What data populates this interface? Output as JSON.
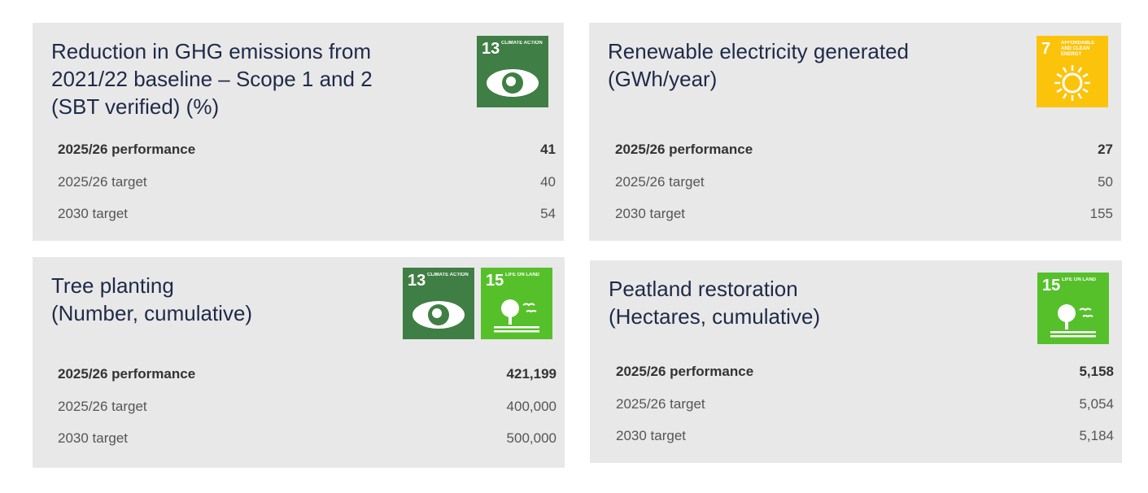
{
  "chart_data": [
    {
      "type": "bar",
      "title": [
        "Reduction in GHG emissions from",
        "2021/22 baseline – Scope 1 and 2",
        "(SBT verified) (%)"
      ],
      "sdg_icons": [
        {
          "number": "13",
          "label": "CLIMATE ACTION",
          "color": "#3f7e44"
        }
      ],
      "categories": [
        "2025/26 performance",
        "2025/26 target",
        "2030 target"
      ],
      "values": [
        41,
        40,
        54
      ],
      "colors": [
        "#8cc98a",
        "#d5d5d6",
        "#d5d5d6"
      ]
    },
    {
      "type": "bar",
      "title": [
        "Renewable electricity generated",
        "(GWh/year)"
      ],
      "sdg_icons": [
        {
          "number": "7",
          "label": "AFFORDABLE AND CLEAN ENERGY",
          "color": "#fcc30b"
        }
      ],
      "categories": [
        "2025/26 performance",
        "2025/26 target",
        "2030 target"
      ],
      "values": [
        27,
        50,
        155
      ],
      "colors": [
        "#fcc30b",
        "#d5d5d6",
        "#d5d5d6"
      ]
    },
    {
      "type": "bar",
      "title": [
        "Tree planting",
        "(Number, cumulative)"
      ],
      "sdg_icons": [
        {
          "number": "13",
          "label": "CLIMATE ACTION",
          "color": "#3f7e44"
        },
        {
          "number": "15",
          "label": "LIFE ON LAND",
          "color": "#56c02b"
        }
      ],
      "categories": [
        "2025/26 performance",
        "2025/26 target",
        "2030 target"
      ],
      "values": [
        421199,
        400000,
        500000
      ],
      "value_labels": [
        "421,199",
        "400,000",
        "500,000"
      ],
      "colors": [
        "#8cc98a",
        "#d5d5d6",
        "#d5d5d6"
      ]
    },
    {
      "type": "bar",
      "title": [
        "Peatland restoration",
        "(Hectares, cumulative)"
      ],
      "sdg_icons": [
        {
          "number": "15",
          "label": "LIFE ON LAND",
          "color": "#56c02b"
        }
      ],
      "categories": [
        "2025/26 performance",
        "2025/26 target",
        "2030 target"
      ],
      "values": [
        5158,
        5054,
        5184
      ],
      "value_labels": [
        "5,158",
        "5,054",
        "5,184"
      ],
      "colors": [
        "#8cc98a",
        "#d5d5d6",
        "#d5d5d6"
      ]
    }
  ]
}
